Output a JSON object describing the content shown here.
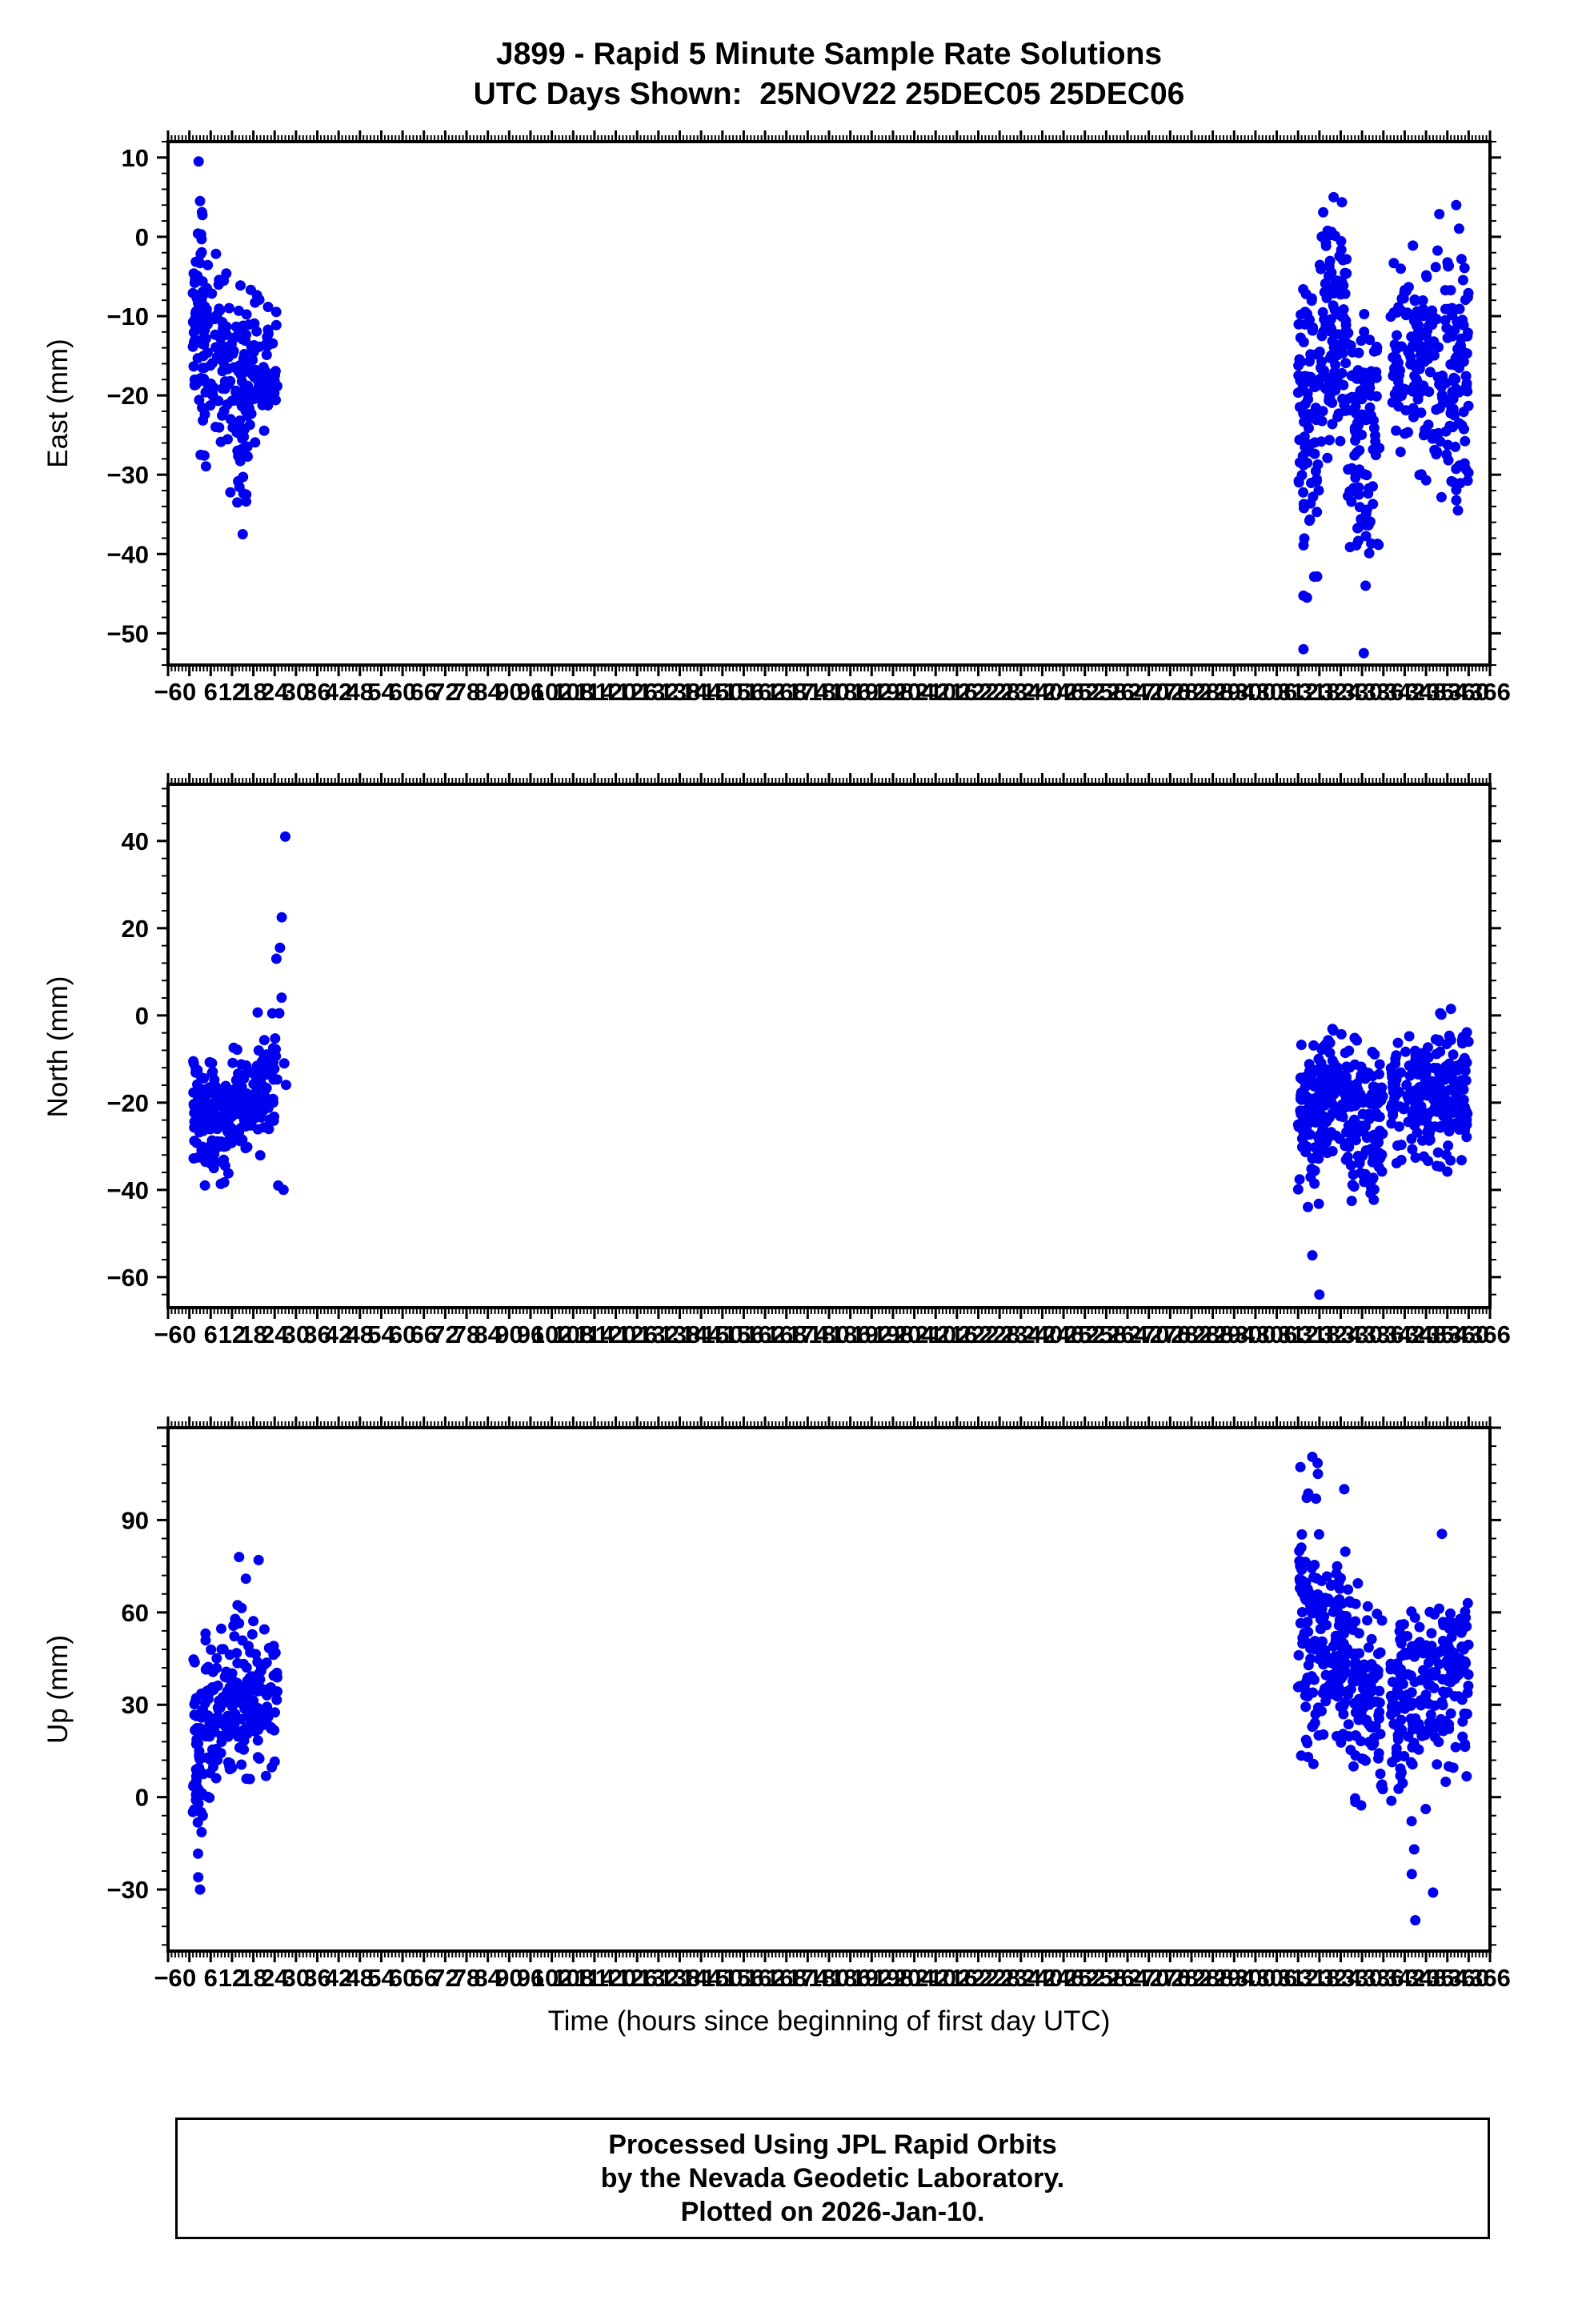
{
  "chart_data": {
    "type": "scatter",
    "title": "J899 - Rapid 5 Minute Sample Rate Solutions",
    "subtitle": "UTC Days Shown:  25NOV22 25DEC05 25DEC06",
    "xlabel": "Time (hours since beginning of first day UTC)",
    "point_color": "#0000ee",
    "grid": false,
    "legend": "none",
    "x_axis": {
      "min": -6,
      "max": 366,
      "label_step": 6,
      "minor_step": 1,
      "first_label": -6,
      "last_label": 366
    },
    "segment_format": [
      "x_start_hours",
      "x_end_hours",
      "n_points",
      "y_mean_mm",
      "y_sigma_mm",
      "y_min_mm",
      "y_max_mm"
    ],
    "panels": [
      {
        "name": "east",
        "ylabel": "East (mm)",
        "y_min": -54,
        "y_max": 12,
        "y_label_step": 10,
        "y_minor_step": 2,
        "y_tick_labels": [
          10,
          0,
          -10,
          -20,
          -30,
          -40,
          -50
        ],
        "segments": [
          [
            1,
            4,
            50,
            -9,
            6,
            -24,
            6
          ],
          [
            3,
            11,
            80,
            -15,
            6,
            -30,
            -1
          ],
          [
            11,
            17,
            70,
            -20,
            7,
            -34,
            -6
          ],
          [
            17,
            25,
            60,
            -17,
            5,
            -29,
            -6
          ],
          [
            312,
            318,
            85,
            -20,
            10,
            -47,
            -3
          ],
          [
            318,
            326,
            115,
            -13,
            7,
            -30,
            5
          ],
          [
            326,
            335,
            105,
            -25,
            9,
            -46,
            -8
          ],
          [
            338,
            349,
            105,
            -16,
            7,
            -32,
            1
          ],
          [
            349,
            360,
            120,
            -18,
            8,
            -36,
            4
          ]
        ],
        "outliers": [
          [
            2.6,
            9.5
          ],
          [
            3.0,
            4.5
          ],
          [
            13.5,
            -33.5
          ],
          [
            15,
            -37.5
          ],
          [
            16,
            -32.5
          ],
          [
            313.5,
            -52
          ],
          [
            330.5,
            -52.5
          ],
          [
            314.5,
            -45.5
          ],
          [
            331,
            -44
          ],
          [
            357,
            -34.5
          ],
          [
            322,
            5
          ],
          [
            356.5,
            4
          ]
        ]
      },
      {
        "name": "north",
        "ylabel": "North (mm)",
        "y_min": -67,
        "y_max": 53,
        "y_label_step": 20,
        "y_minor_step": 4,
        "y_tick_labels": [
          40,
          20,
          0,
          -20,
          -40,
          -60
        ],
        "segments": [
          [
            1,
            5,
            60,
            -23,
            8,
            -40,
            -6
          ],
          [
            5,
            12,
            78,
            -24,
            7,
            -41,
            -8
          ],
          [
            12,
            18,
            65,
            -20,
            7,
            -36,
            -3
          ],
          [
            18,
            24,
            55,
            -17,
            7,
            -33,
            2
          ],
          [
            23,
            27.5,
            12,
            -6,
            10,
            -25,
            16
          ],
          [
            312,
            318,
            75,
            -25,
            9,
            -45,
            -6
          ],
          [
            318,
            326,
            105,
            -18,
            7,
            -34,
            0
          ],
          [
            326,
            336,
            110,
            -24,
            9,
            -44,
            -5
          ],
          [
            338,
            350,
            110,
            -20,
            7,
            -36,
            -2
          ],
          [
            350,
            360,
            112,
            -17,
            8,
            -38,
            1
          ]
        ],
        "outliers": [
          [
            27,
            41
          ],
          [
            26,
            22.5
          ],
          [
            25.5,
            15.5
          ],
          [
            24.5,
            13
          ],
          [
            26.5,
            -40
          ],
          [
            25,
            -39
          ],
          [
            318,
            -64
          ],
          [
            316,
            -55
          ],
          [
            355,
            1.5
          ],
          [
            352,
            0.5
          ]
        ]
      },
      {
        "name": "up",
        "ylabel": "Up (mm)",
        "y_min": -50,
        "y_max": 120,
        "y_label_step": 30,
        "y_minor_step": 6,
        "y_tick_labels": [
          90,
          60,
          30,
          0,
          -30
        ],
        "segments": [
          [
            1,
            4,
            55,
            12,
            14,
            -28,
            45
          ],
          [
            4,
            12,
            80,
            28,
            14,
            -10,
            62
          ],
          [
            12,
            19,
            70,
            40,
            15,
            2,
            76
          ],
          [
            19,
            25,
            55,
            30,
            12,
            0,
            58
          ],
          [
            312,
            318,
            80,
            58,
            22,
            0,
            108
          ],
          [
            318,
            326,
            108,
            48,
            14,
            12,
            84
          ],
          [
            326,
            336,
            108,
            32,
            15,
            -22,
            70
          ],
          [
            338,
            348,
            102,
            28,
            15,
            -38,
            62
          ],
          [
            348,
            360,
            118,
            38,
            13,
            2,
            80
          ]
        ],
        "outliers": [
          [
            14,
            78
          ],
          [
            19.5,
            77
          ],
          [
            3,
            -30
          ],
          [
            2.5,
            -26
          ],
          [
            316,
            110.5
          ],
          [
            317.5,
            108.5
          ],
          [
            325,
            100
          ],
          [
            352.5,
            85.5
          ],
          [
            345,
            -40
          ],
          [
            350,
            -31
          ],
          [
            344,
            -25
          ]
        ]
      }
    ]
  },
  "footer": {
    "line1": "Processed Using JPL Rapid Orbits",
    "line2": "by the Nevada Geodetic Laboratory.",
    "line3": "Plotted on 2026-Jan-10."
  }
}
